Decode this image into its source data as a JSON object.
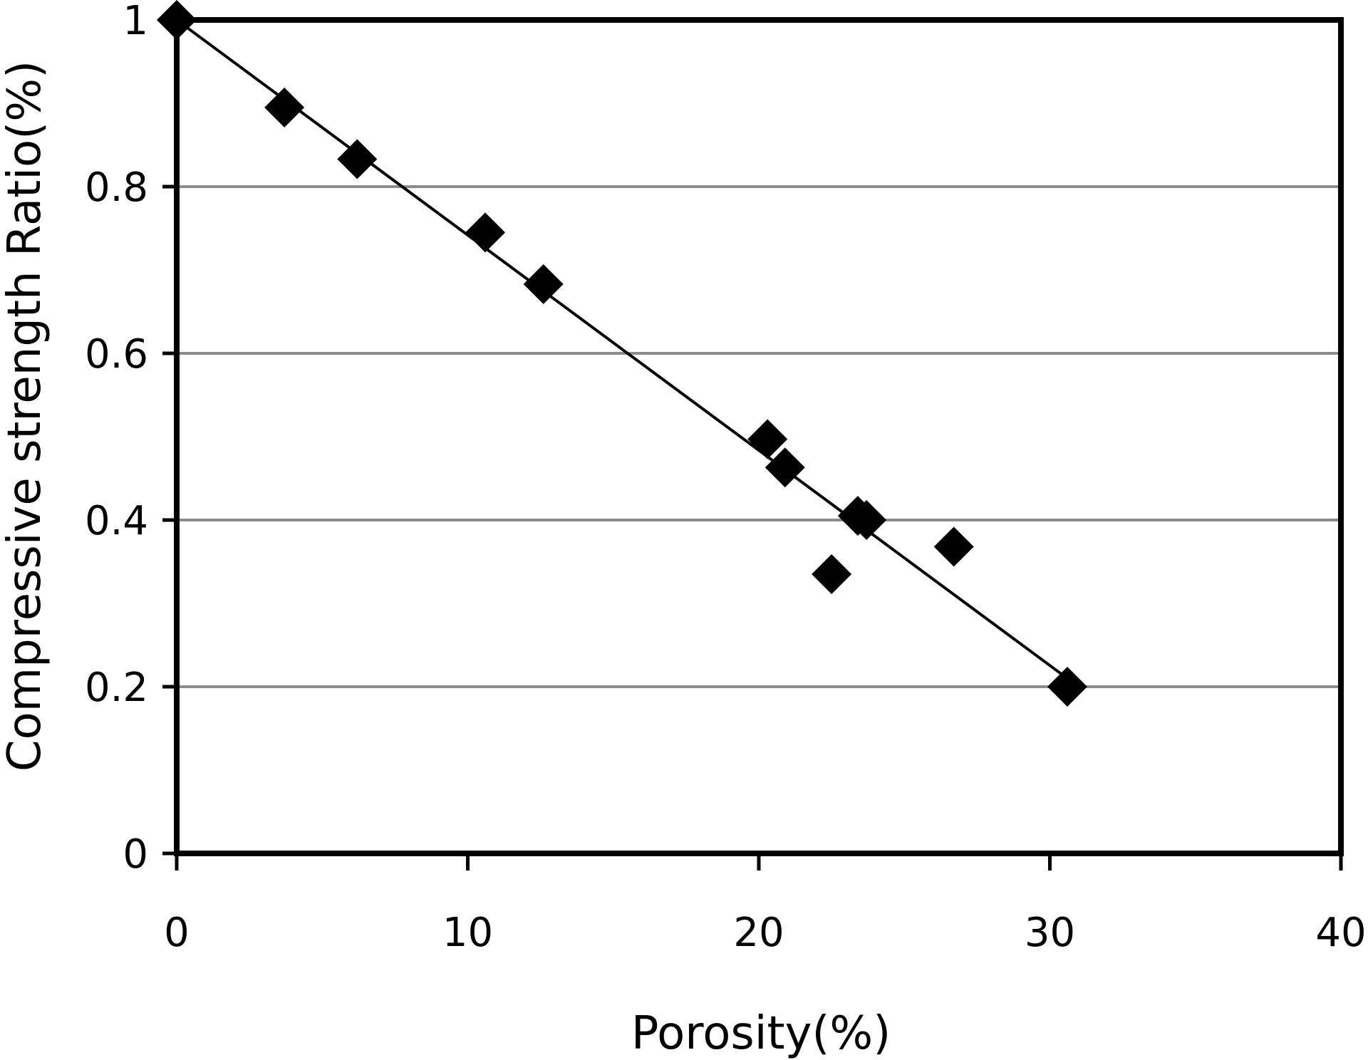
{
  "chart_data": {
    "type": "scatter",
    "title": "",
    "xlabel": "Porosity(%)",
    "ylabel": "Compressive strength Ratio(%)",
    "xlim": [
      0,
      40
    ],
    "ylim": [
      0,
      1
    ],
    "x_ticks": [
      0,
      10,
      20,
      30,
      40
    ],
    "y_ticks": [
      0,
      0.2,
      0.4,
      0.6,
      0.8,
      1
    ],
    "y_tick_labels": [
      "0",
      "0.2",
      "0.4",
      "0.6",
      "0.8",
      "1"
    ],
    "x_tick_labels": [
      "0",
      "10",
      "20",
      "30",
      "40"
    ],
    "grid": "horizontal",
    "legend": "none",
    "marker": "diamond",
    "colors": {
      "marker": "#000000",
      "trendline": "#000000",
      "gridline": "#8c8c8c",
      "frame": "#000000"
    },
    "series": [
      {
        "x": [
          0,
          3.7,
          6.2,
          10.6,
          12.6,
          20.3,
          20.9,
          22.5,
          23.4,
          23.7,
          26.7,
          30.6
        ],
        "y": [
          1.0,
          0.895,
          0.833,
          0.745,
          0.683,
          0.497,
          0.463,
          0.335,
          0.405,
          0.4,
          0.368,
          0.2
        ]
      }
    ],
    "trendline": {
      "type": "linear",
      "x": [
        0,
        30.6
      ],
      "y": [
        1.0,
        0.21
      ]
    }
  }
}
